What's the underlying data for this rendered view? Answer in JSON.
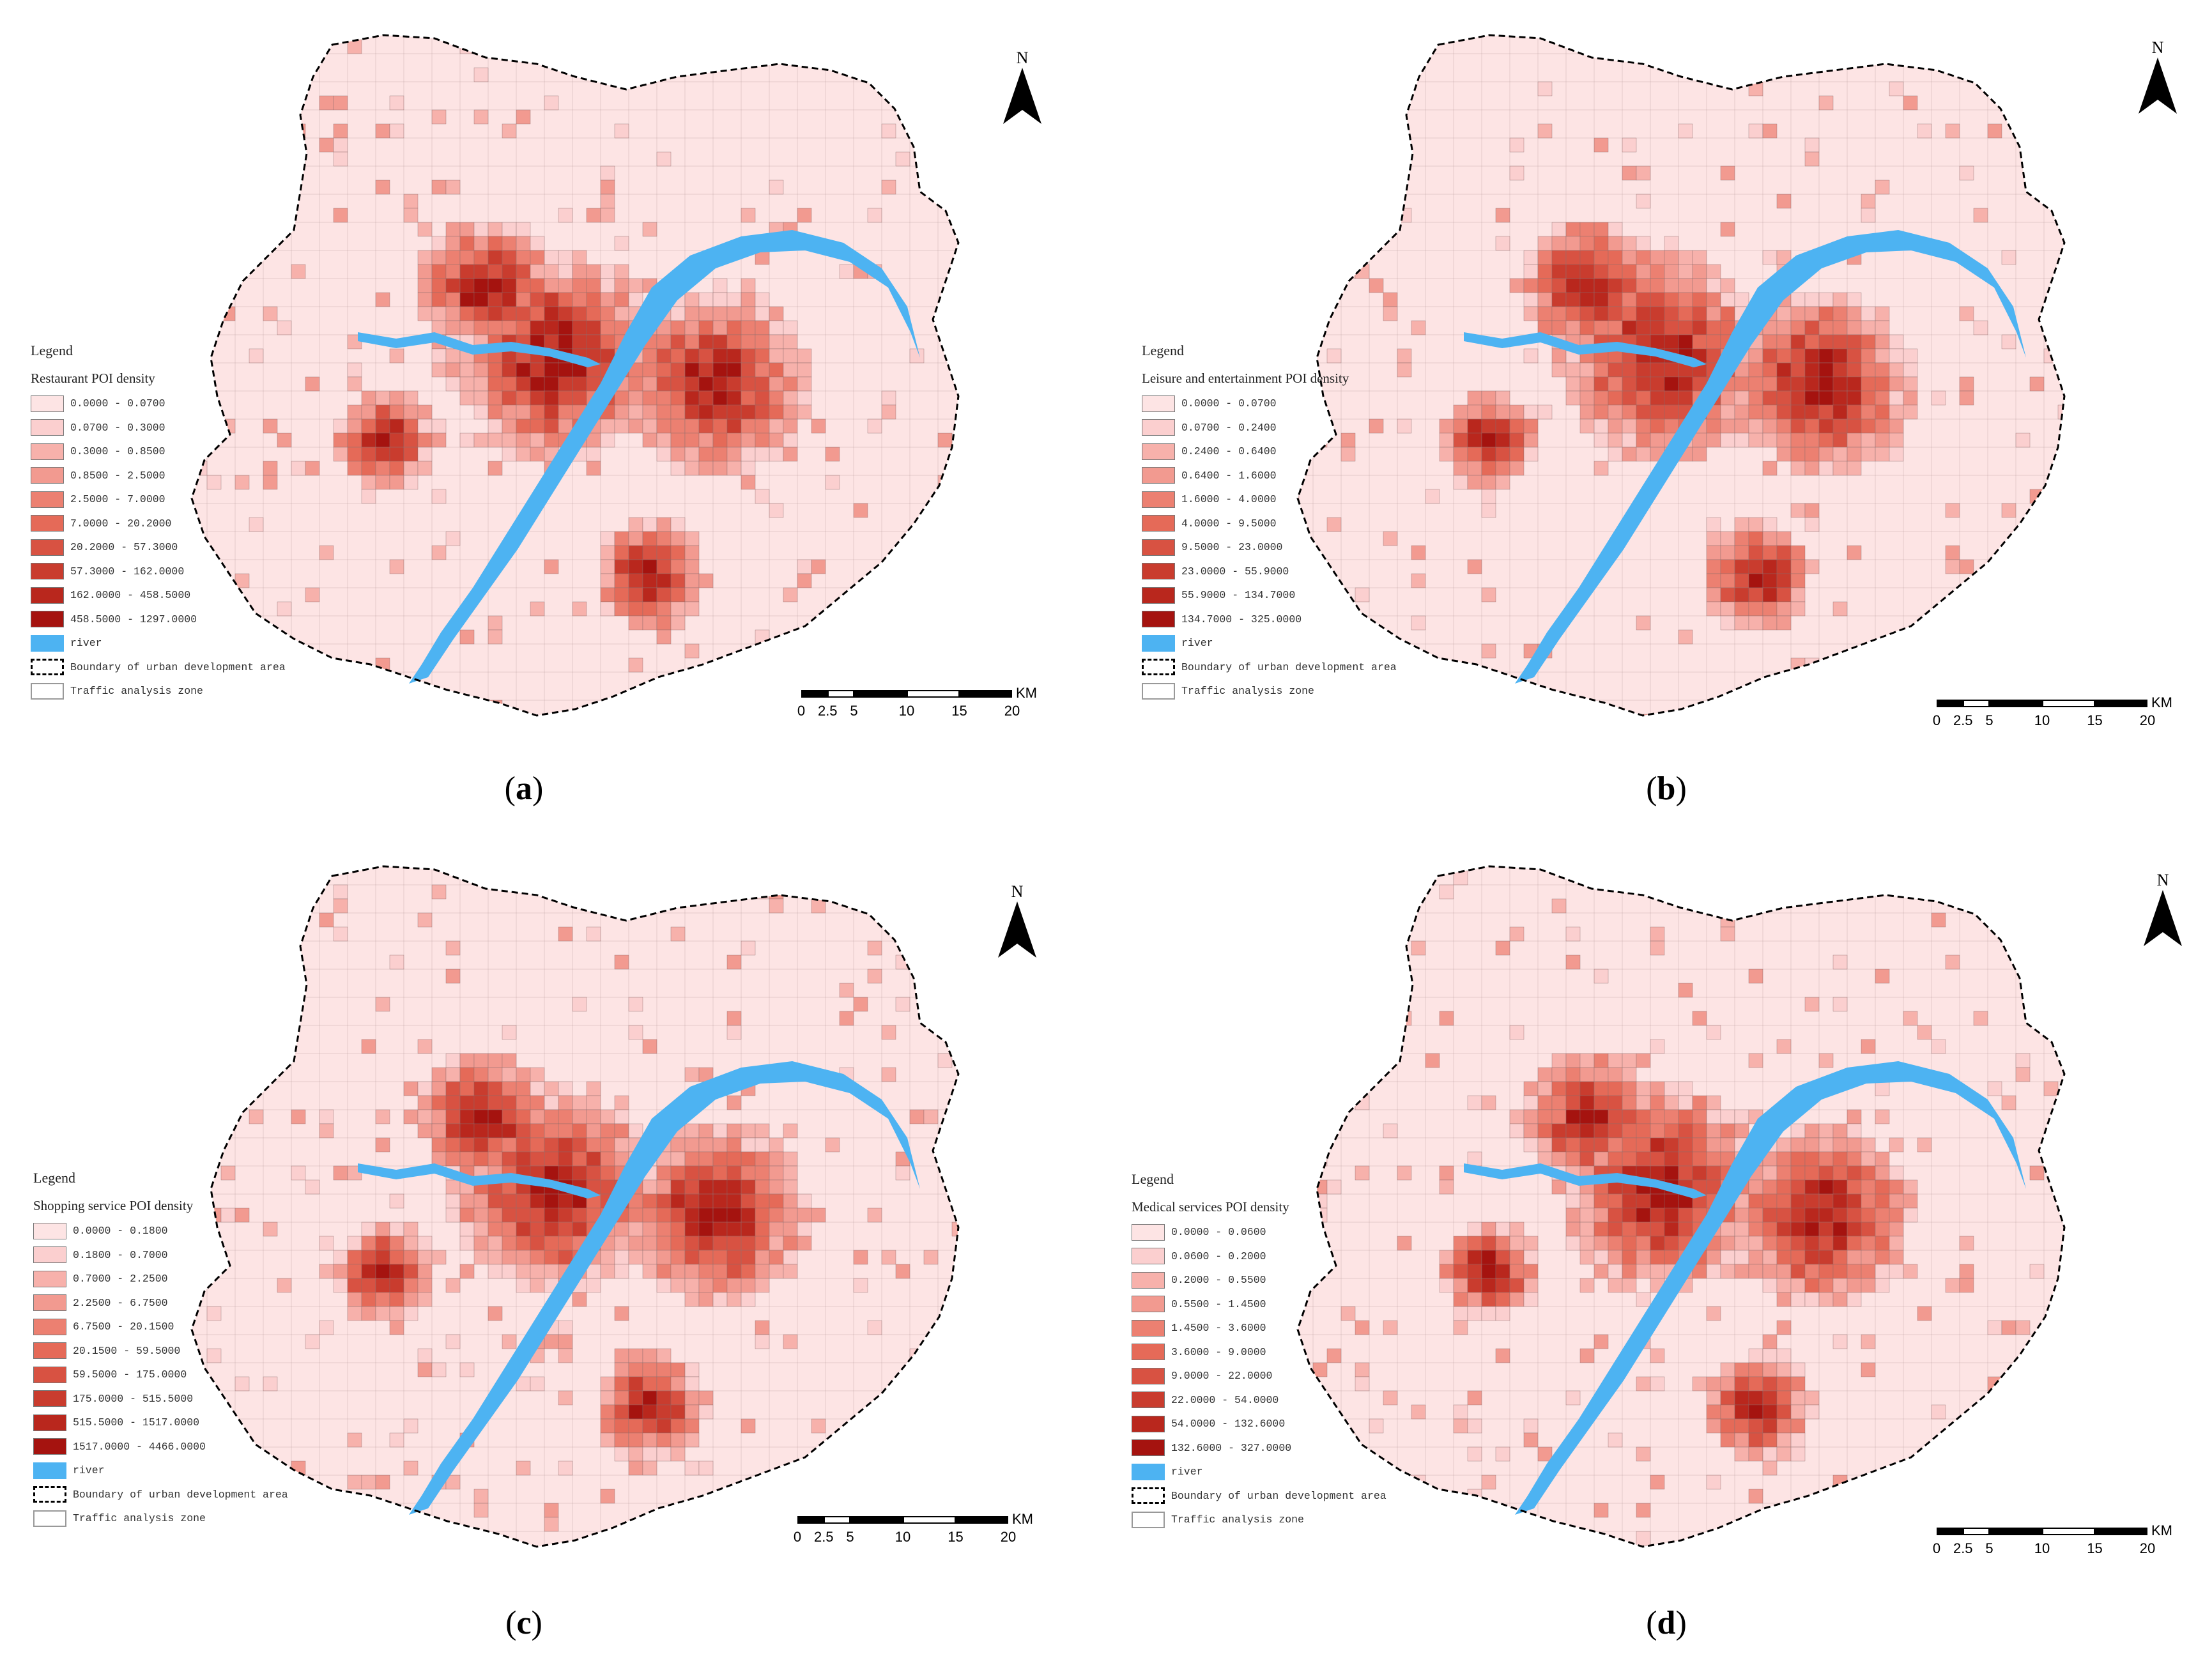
{
  "panels": [
    {
      "caption_letter": "a",
      "legend": {
        "title": "Legend",
        "subtitle": "Restaurant POI density",
        "classes": [
          "0.0000 - 0.0700",
          "0.0700 - 0.3000",
          "0.3000 - 0.8500",
          "0.8500 - 2.5000",
          "2.5000 - 7.0000",
          "7.0000 - 20.2000",
          "20.2000 - 57.3000",
          "57.3000 - 162.0000",
          "162.0000 - 458.5000",
          "458.5000 - 1297.0000"
        ],
        "river": "river",
        "boundary": "Boundary of urban development area",
        "taz": "Traffic analysis zone"
      }
    },
    {
      "caption_letter": "b",
      "legend": {
        "title": "Legend",
        "subtitle": "Leisure and entertainment POI density",
        "classes": [
          "0.0000 - 0.0700",
          "0.0700 - 0.2400",
          "0.2400 - 0.6400",
          "0.6400 - 1.6000",
          "1.6000 - 4.0000",
          "4.0000 - 9.5000",
          "9.5000 - 23.0000",
          "23.0000 - 55.9000",
          "55.9000 - 134.7000",
          "134.7000 - 325.0000"
        ],
        "river": "river",
        "boundary": "Boundary of urban development area",
        "taz": "Traffic analysis zone"
      }
    },
    {
      "caption_letter": "c",
      "legend": {
        "title": "Legend",
        "subtitle": "Shopping service POI density",
        "classes": [
          "0.0000 - 0.1800",
          "0.1800 - 0.7000",
          "0.7000 - 2.2500",
          "2.2500 - 6.7500",
          "6.7500 - 20.1500",
          "20.1500 - 59.5000",
          "59.5000 - 175.0000",
          "175.0000 - 515.5000",
          "515.5000 - 1517.0000",
          "1517.0000 - 4466.0000"
        ],
        "river": "river",
        "boundary": "Boundary of urban development area",
        "taz": "Traffic analysis zone"
      }
    },
    {
      "caption_letter": "d",
      "legend": {
        "title": "Legend",
        "subtitle": "Medical services POI density",
        "classes": [
          "0.0000 - 0.0600",
          "0.0600 - 0.2000",
          "0.2000 - 0.5500",
          "0.5500 - 1.4500",
          "1.4500 - 3.6000",
          "3.6000 - 9.0000",
          "9.0000 - 22.0000",
          "22.0000 - 54.0000",
          "54.0000 - 132.6000",
          "132.6000 - 327.0000"
        ],
        "river": "river",
        "boundary": "Boundary of urban development area",
        "taz": "Traffic analysis zone"
      }
    }
  ],
  "north_label": "N",
  "scale": {
    "ticks": [
      "0",
      "2.5",
      "5",
      "10",
      "15",
      "20"
    ],
    "unit": "KM"
  },
  "class_colors": [
    "#fde4e4",
    "#fbcfcf",
    "#f7b1ab",
    "#f29a90",
    "#ec8071",
    "#e56a58",
    "#d85242",
    "#c93c2e",
    "#b9271d",
    "#a5130f"
  ],
  "river_color": "#4db3f2"
}
